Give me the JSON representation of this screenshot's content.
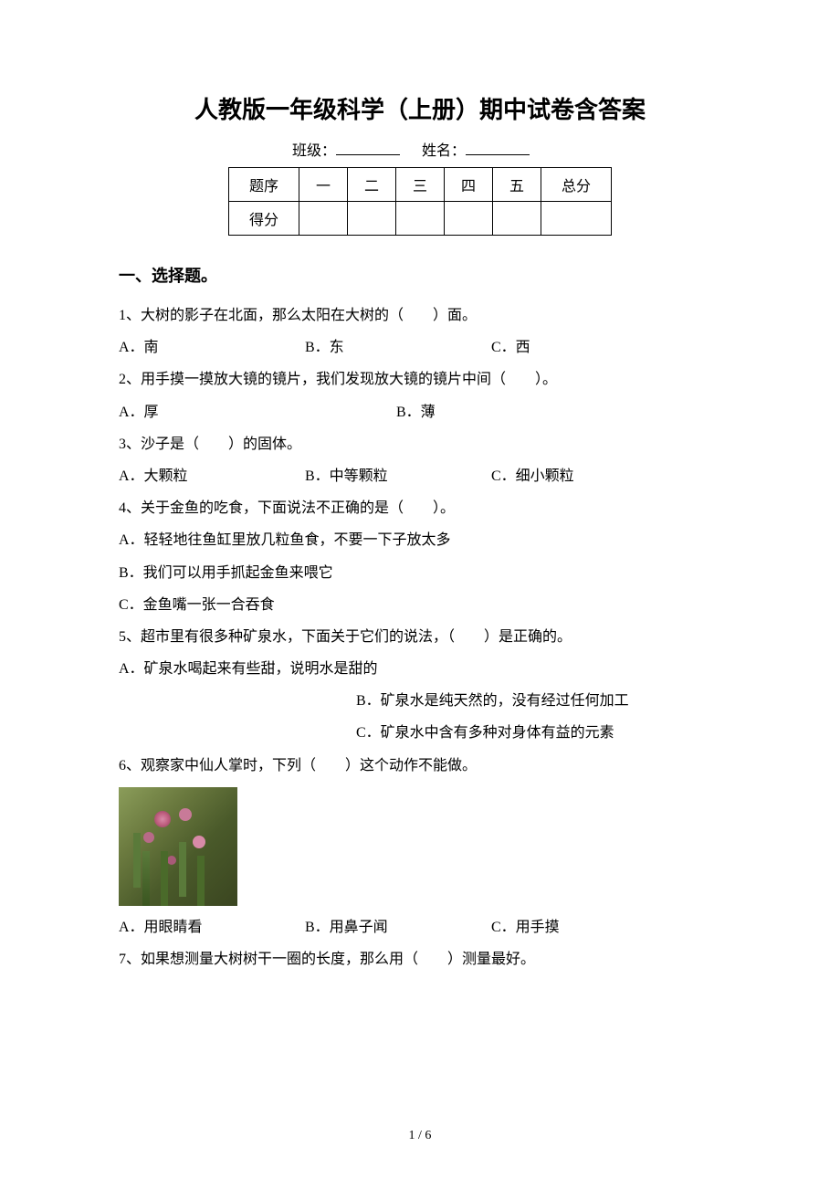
{
  "title": "人教版一年级科学（上册）期中试卷含答案",
  "header": {
    "class_label": "班级：",
    "name_label": "姓名："
  },
  "score_table": {
    "row1": [
      "题序",
      "一",
      "二",
      "三",
      "四",
      "五",
      "总分"
    ],
    "row2_label": "得分"
  },
  "section1_heading": "一、选择题。",
  "questions": [
    {
      "num": "1",
      "text": "1、大树的影子在北面，那么太阳在大树的（　　）面。",
      "options": [
        "A．南",
        "B．东",
        "C．西"
      ],
      "layout": "three-col"
    },
    {
      "num": "2",
      "text": "2、用手摸一摸放大镜的镜片，我们发现放大镜的镜片中间（　　）。",
      "options": [
        "A．厚",
        "B．薄"
      ],
      "layout": "two-col"
    },
    {
      "num": "3",
      "text": "3、沙子是（　　）的固体。",
      "options": [
        "A．大颗粒",
        "B．中等颗粒",
        "C．细小颗粒"
      ],
      "layout": "three-col"
    },
    {
      "num": "4",
      "text": "4、关于金鱼的吃食，下面说法不正确的是（　　）。",
      "options": [
        "A．轻轻地往鱼缸里放几粒鱼食，不要一下子放太多",
        "B．我们可以用手抓起金鱼来喂它",
        "C．金鱼嘴一张一合吞食"
      ],
      "layout": "full"
    },
    {
      "num": "5",
      "text": "5、超市里有很多种矿泉水，下面关于它们的说法，（　　）是正确的。",
      "options_first": "A．矿泉水喝起来有些甜，说明水是甜的",
      "options_rest": [
        "B．矿泉水是纯天然的，没有经过任何加工",
        "C．矿泉水中含有多种对身体有益的元素"
      ],
      "layout": "mixed"
    },
    {
      "num": "6",
      "text": "6、观察家中仙人掌时，下列（　　）这个动作不能做。",
      "has_image": true,
      "options": [
        "A．用眼睛看",
        "B．用鼻子闻",
        "C．用手摸"
      ],
      "layout": "three-col"
    },
    {
      "num": "7",
      "text": "7、如果想测量大树树干一圈的长度，那么用（　　）测量最好。"
    }
  ],
  "page_number": "1 / 6",
  "colors": {
    "text": "#000000",
    "background": "#ffffff",
    "cactus_green_light": "#8b9d5a",
    "cactus_green_dark": "#3a4520",
    "cactus_flower": "#d88aa8"
  },
  "typography": {
    "title_fontsize": 26,
    "body_fontsize": 16,
    "section_fontsize": 18,
    "line_height": 2.2
  }
}
